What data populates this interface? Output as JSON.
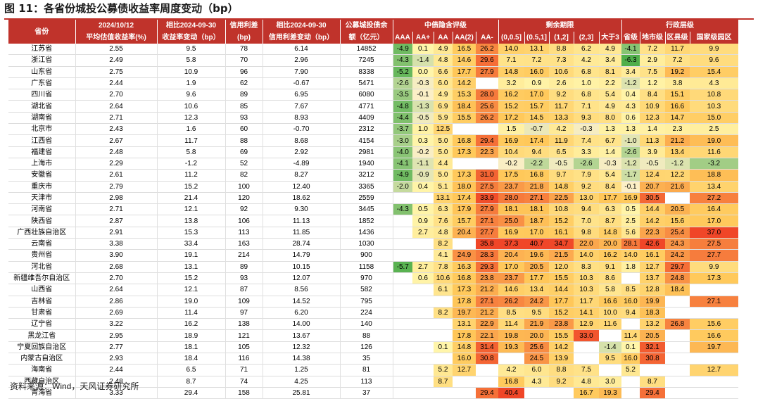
{
  "title": "图 11：各省份城投公募债收益率周度变动（bp）",
  "source": "资料来源：Wind，天风证券研究所",
  "headers": {
    "province": "省份",
    "yield_top": "2024/10/12",
    "yield_bottom": "平均估值收益率(%)",
    "yield_chg_top": "相比2024-09-30",
    "yield_chg_bottom": "收益率变动（bp）",
    "spread_top": "信用利差",
    "spread_bottom": "(bp)",
    "spread_chg_top": "相比2024-09-30",
    "spread_chg_bottom": "信用利差变动（bp）",
    "balance_top": "公募城投债余",
    "balance_bottom": "额（亿元）",
    "group_rating": "中债隐含评级",
    "group_term": "剩余期限",
    "group_admin": "行政层级",
    "sub": [
      "AAA",
      "AA+",
      "AA",
      "AA(2)",
      "AA-",
      "(0,0.5]",
      "(0.5,1]",
      "(1,2]",
      "(2,3]",
      "大于3",
      "省级",
      "地市级",
      "区县级",
      "国家级园区"
    ]
  },
  "rows": [
    {
      "p": "江苏省",
      "y": "2.55",
      "yc": "9.5",
      "s": "78",
      "sc": "6.14",
      "b": "14852",
      "v": [
        "-4.9",
        "0.1",
        "4.9",
        "16.5",
        "26.2",
        "14.0",
        "13.1",
        "8.8",
        "6.2",
        "4.9",
        "-4.1",
        "7.2",
        "11.7",
        "9.9"
      ]
    },
    {
      "p": "浙江省",
      "y": "2.49",
      "yc": "5.8",
      "s": "70",
      "sc": "2.96",
      "b": "7245",
      "v": [
        "-4.3",
        "-1.4",
        "4.8",
        "14.6",
        "29.6",
        "7.1",
        "7.2",
        "7.3",
        "4.2",
        "3.4",
        "-6.3",
        "2.9",
        "7.2",
        "9.6"
      ]
    },
    {
      "p": "山东省",
      "y": "2.75",
      "yc": "10.9",
      "s": "96",
      "sc": "7.90",
      "b": "8338",
      "v": [
        "-5.2",
        "0.0",
        "6.6",
        "17.7",
        "27.9",
        "14.8",
        "16.0",
        "10.6",
        "6.8",
        "8.1",
        "3.4",
        "7.5",
        "19.2",
        "15.4"
      ]
    },
    {
      "p": "广东省",
      "y": "2.44",
      "yc": "1.9",
      "s": "62",
      "sc": "-0.67",
      "b": "5471",
      "v": [
        "-2.6",
        "-0.3",
        "6.0",
        "14.2",
        "",
        "3.2",
        "0.9",
        "2.6",
        "1.0",
        "2.2",
        "-1.2",
        "1.2",
        "3.8",
        "4.3"
      ]
    },
    {
      "p": "四川省",
      "y": "2.70",
      "yc": "9.6",
      "s": "89",
      "sc": "6.95",
      "b": "6080",
      "v": [
        "-3.5",
        "-0.1",
        "4.9",
        "15.3",
        "28.0",
        "16.2",
        "17.0",
        "9.2",
        "6.8",
        "5.4",
        "0.4",
        "8.4",
        "15.1",
        "10.8"
      ]
    },
    {
      "p": "湖北省",
      "y": "2.64",
      "yc": "10.6",
      "s": "85",
      "sc": "7.67",
      "b": "4771",
      "v": [
        "-4.8",
        "-1.3",
        "6.9",
        "18.4",
        "25.6",
        "15.2",
        "15.7",
        "11.7",
        "7.1",
        "4.9",
        "4.3",
        "10.9",
        "16.6",
        "10.3"
      ]
    },
    {
      "p": "湖南省",
      "y": "2.71",
      "yc": "12.3",
      "s": "93",
      "sc": "8.93",
      "b": "4409",
      "v": [
        "-4.4",
        "-0.5",
        "5.9",
        "15.5",
        "26.2",
        "17.2",
        "14.5",
        "13.3",
        "9.3",
        "8.0",
        "0.6",
        "12.3",
        "14.7",
        "15.0"
      ]
    },
    {
      "p": "北京市",
      "y": "2.43",
      "yc": "1.6",
      "s": "60",
      "sc": "-0.70",
      "b": "2312",
      "v": [
        "-3.7",
        "1.0",
        "12.5",
        "",
        "",
        "1.5",
        "-0.7",
        "4.2",
        "-0.3",
        "1.3",
        "1.3",
        "1.4",
        "2.3",
        "2.5"
      ]
    },
    {
      "p": "江西省",
      "y": "2.67",
      "yc": "11.7",
      "s": "88",
      "sc": "8.68",
      "b": "4154",
      "v": [
        "-3.0",
        "0.3",
        "5.0",
        "16.8",
        "29.4",
        "16.9",
        "17.4",
        "11.9",
        "7.4",
        "6.7",
        "-1.0",
        "11.3",
        "21.2",
        "19.0"
      ]
    },
    {
      "p": "福建省",
      "y": "2.48",
      "yc": "5.8",
      "s": "69",
      "sc": "2.92",
      "b": "2981",
      "v": [
        "-4.0",
        "-0.2",
        "5.0",
        "17.3",
        "22.3",
        "10.4",
        "9.4",
        "6.5",
        "3.3",
        "1.4",
        "-2.6",
        "3.9",
        "13.4",
        "11.6"
      ]
    },
    {
      "p": "上海市",
      "y": "2.29",
      "yc": "-1.2",
      "s": "52",
      "sc": "-4.89",
      "b": "1940",
      "v": [
        "-4.1",
        "-1.1",
        "4.4",
        "",
        "",
        "-0.2",
        "-2.2",
        "-0.5",
        "-2.6",
        "-0.3",
        "-1.2",
        "-0.5",
        "-1.2",
        "-3.2"
      ]
    },
    {
      "p": "安徽省",
      "y": "2.61",
      "yc": "11.2",
      "s": "82",
      "sc": "8.27",
      "b": "3212",
      "v": [
        "-4.9",
        "-0.9",
        "5.0",
        "17.3",
        "31.0",
        "17.5",
        "16.8",
        "9.7",
        "7.9",
        "5.4",
        "-1.7",
        "12.4",
        "12.2",
        "18.8"
      ]
    },
    {
      "p": "重庆市",
      "y": "2.79",
      "yc": "15.2",
      "s": "100",
      "sc": "12.40",
      "b": "3365",
      "v": [
        "-2.0",
        "0.4",
        "5.1",
        "18.0",
        "27.5",
        "23.7",
        "21.8",
        "14.8",
        "9.2",
        "8.4",
        "-0.1",
        "20.7",
        "21.6",
        "13.4"
      ]
    },
    {
      "p": "天津市",
      "y": "2.98",
      "yc": "21.4",
      "s": "120",
      "sc": "18.62",
      "b": "2559",
      "v": [
        "",
        "",
        "13.1",
        "17.4",
        "33.9",
        "28.0",
        "27.1",
        "22.5",
        "13.0",
        "17.7",
        "16.9",
        "30.5",
        "",
        "27.2"
      ]
    },
    {
      "p": "河南省",
      "y": "2.71",
      "yc": "12.1",
      "s": "92",
      "sc": "9.30",
      "b": "3445",
      "v": [
        "-4.3",
        "0.5",
        "6.3",
        "17.9",
        "27.9",
        "18.1",
        "18.1",
        "10.8",
        "9.4",
        "6.3",
        "0.5",
        "14.4",
        "20.5",
        "16.4"
      ]
    },
    {
      "p": "陕西省",
      "y": "2.87",
      "yc": "13.8",
      "s": "106",
      "sc": "11.13",
      "b": "1852",
      "v": [
        "",
        "0.9",
        "7.6",
        "15.7",
        "27.1",
        "25.0",
        "18.7",
        "15.2",
        "7.0",
        "8.7",
        "2.5",
        "14.2",
        "15.6",
        "17.0"
      ]
    },
    {
      "p": "广西壮族自治区",
      "y": "2.91",
      "yc": "15.3",
      "s": "113",
      "sc": "11.85",
      "b": "1436",
      "v": [
        "",
        "2.7",
        "4.8",
        "20.4",
        "27.7",
        "16.9",
        "17.0",
        "16.1",
        "9.8",
        "14.8",
        "5.6",
        "22.3",
        "25.4",
        "37.0"
      ]
    },
    {
      "p": "云南省",
      "y": "3.38",
      "yc": "33.4",
      "s": "163",
      "sc": "28.74",
      "b": "1030",
      "v": [
        "",
        "",
        "8.2",
        "",
        "35.8",
        "37.3",
        "40.7",
        "34.7",
        "22.0",
        "20.0",
        "28.1",
        "42.6",
        "24.3",
        "27.5"
      ]
    },
    {
      "p": "贵州省",
      "y": "3.90",
      "yc": "19.1",
      "s": "214",
      "sc": "14.79",
      "b": "900",
      "v": [
        "",
        "",
        "4.1",
        "24.9",
        "28.3",
        "20.4",
        "19.6",
        "21.5",
        "14.0",
        "16.2",
        "14.0",
        "16.1",
        "24.2",
        "27.7"
      ]
    },
    {
      "p": "河北省",
      "y": "2.68",
      "yc": "13.1",
      "s": "89",
      "sc": "10.15",
      "b": "1158",
      "v": [
        "-5.7",
        "2.7",
        "7.8",
        "16.3",
        "29.3",
        "17.0",
        "20.5",
        "12.0",
        "8.3",
        "9.1",
        "1.8",
        "12.7",
        "29.7",
        "9.9"
      ]
    },
    {
      "p": "新疆维吾尔自治区",
      "y": "2.70",
      "yc": "15.2",
      "s": "93",
      "sc": "12.07",
      "b": "970",
      "v": [
        "",
        "0.6",
        "10.6",
        "16.8",
        "23.8",
        "23.7",
        "17.7",
        "15.5",
        "10.3",
        "8.6",
        "",
        "13.7",
        "24.8",
        "17.3"
      ]
    },
    {
      "p": "山西省",
      "y": "2.64",
      "yc": "12.1",
      "s": "87",
      "sc": "8.56",
      "b": "582",
      "v": [
        "",
        "",
        "6.1",
        "17.3",
        "21.2",
        "14.6",
        "13.4",
        "14.4",
        "10.3",
        "5.8",
        "8.5",
        "12.8",
        "18.4",
        ""
      ]
    },
    {
      "p": "吉林省",
      "y": "2.86",
      "yc": "19.0",
      "s": "109",
      "sc": "14.52",
      "b": "795",
      "v": [
        "",
        "",
        "",
        "17.8",
        "27.1",
        "26.2",
        "24.2",
        "17.7",
        "11.7",
        "16.6",
        "16.0",
        "19.9",
        "",
        "27.1"
      ]
    },
    {
      "p": "甘肃省",
      "y": "2.69",
      "yc": "11.4",
      "s": "97",
      "sc": "6.20",
      "b": "224",
      "v": [
        "",
        "",
        "8.2",
        "19.7",
        "21.2",
        "8.5",
        "9.5",
        "15.2",
        "14.1",
        "10.0",
        "9.4",
        "18.3",
        "",
        ""
      ]
    },
    {
      "p": "辽宁省",
      "y": "3.22",
      "yc": "16.2",
      "s": "138",
      "sc": "14.00",
      "b": "140",
      "v": [
        "",
        "",
        "",
        "13.1",
        "22.9",
        "11.4",
        "21.9",
        "23.8",
        "12.9",
        "11.6",
        "",
        "13.2",
        "26.8",
        "15.6"
      ]
    },
    {
      "p": "黑龙江省",
      "y": "2.95",
      "yc": "18.9",
      "s": "121",
      "sc": "13.67",
      "b": "88",
      "v": [
        "",
        "",
        "",
        "17.8",
        "22.1",
        "19.8",
        "20.0",
        "15.5",
        "33.0",
        "",
        "11.4",
        "20.5",
        "",
        "16.6"
      ]
    },
    {
      "p": "宁夏回族自治区",
      "y": "2.77",
      "yc": "18.1",
      "s": "105",
      "sc": "12.32",
      "b": "126",
      "v": [
        "",
        "",
        "0.1",
        "14.8",
        "31.4",
        "19.3",
        "25.6",
        "14.2",
        "",
        "-1.4",
        "0.1",
        "32.1",
        "",
        "19.7"
      ]
    },
    {
      "p": "内蒙古自治区",
      "y": "2.93",
      "yc": "18.4",
      "s": "116",
      "sc": "14.38",
      "b": "35",
      "v": [
        "",
        "",
        "",
        "16.0",
        "30.8",
        "",
        "24.5",
        "13.9",
        "",
        "9.5",
        "16.0",
        "30.8",
        "",
        ""
      ]
    },
    {
      "p": "海南省",
      "y": "2.44",
      "yc": "6.5",
      "s": "71",
      "sc": "1.25",
      "b": "81",
      "v": [
        "",
        "",
        "5.2",
        "12.7",
        "",
        "4.2",
        "6.0",
        "8.8",
        "7.5",
        "",
        "5.2",
        "",
        "",
        "12.7"
      ]
    },
    {
      "p": "西藏自治区",
      "y": "2.48",
      "yc": "8.7",
      "s": "74",
      "sc": "4.25",
      "b": "113",
      "v": [
        "",
        "",
        "8.7",
        "",
        "",
        "16.8",
        "4.3",
        "9.2",
        "4.8",
        "3.0",
        "",
        "8.7",
        "",
        ""
      ]
    },
    {
      "p": "青海省",
      "y": "3.33",
      "yc": "29.4",
      "s": "158",
      "sc": "25.81",
      "b": "37",
      "v": [
        "",
        "",
        "",
        "",
        "29.4",
        "40.4",
        "",
        "",
        "16.7",
        "19.3",
        "",
        "29.4",
        "",
        ""
      ]
    }
  ]
}
